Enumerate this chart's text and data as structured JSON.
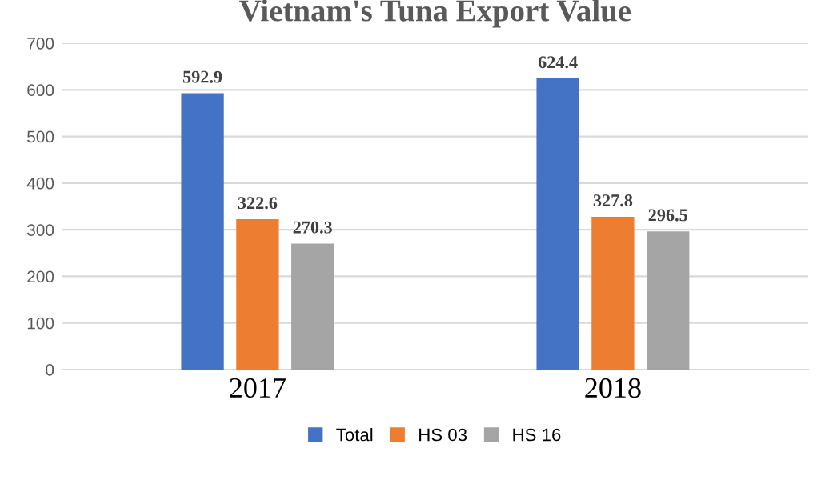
{
  "chart_data": {
    "type": "bar",
    "title": "Vietnam's Tuna Export Value",
    "categories": [
      "2017",
      "2018"
    ],
    "series": [
      {
        "name": "Total",
        "color": "#4472c4",
        "values": [
          592.9,
          624.4
        ]
      },
      {
        "name": "HS 03",
        "color": "#ed7d31",
        "values": [
          322.6,
          327.8
        ]
      },
      {
        "name": "HS 16",
        "color": "#a5a5a5",
        "values": [
          270.3,
          296.5
        ]
      }
    ],
    "ylim": [
      0,
      700
    ],
    "yticks": [
      0,
      100,
      200,
      300,
      400,
      500,
      600,
      700
    ],
    "grid": "y",
    "legend": "bottom",
    "data_labels": true
  }
}
